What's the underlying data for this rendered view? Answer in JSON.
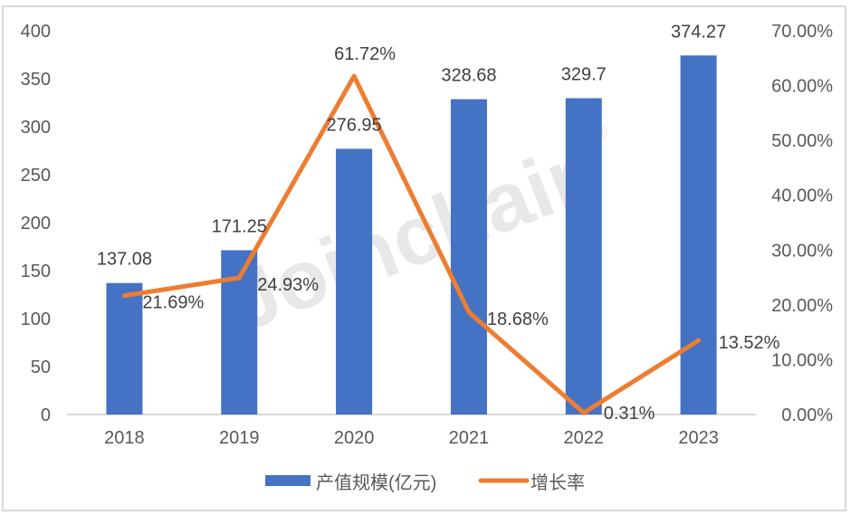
{
  "chart_data": {
    "type": "bar+line",
    "title": "",
    "categories": [
      "2018",
      "2019",
      "2020",
      "2021",
      "2022",
      "2023"
    ],
    "series": [
      {
        "name": "产值规模(亿元)",
        "type": "bar",
        "axis": "left",
        "color": "#4472C4",
        "values": [
          137.08,
          171.25,
          276.95,
          328.68,
          329.7,
          374.27
        ],
        "labels": [
          "137.08",
          "171.25",
          "276.95",
          "328.68",
          "329.7",
          "374.27"
        ]
      },
      {
        "name": "增长率",
        "type": "line",
        "axis": "right",
        "color": "#ED7D31",
        "values": [
          21.69,
          24.93,
          61.72,
          18.68,
          0.31,
          13.52
        ],
        "labels": [
          "21.69%",
          "24.93%",
          "61.72%",
          "18.68%",
          "0.31%",
          "13.52%"
        ]
      }
    ],
    "left_axis": {
      "label": "",
      "ylim": [
        0,
        400
      ],
      "ticks": [
        "0",
        "50",
        "100",
        "150",
        "200",
        "250",
        "300",
        "350",
        "400"
      ]
    },
    "right_axis": {
      "label": "",
      "ylim": [
        0,
        70
      ],
      "ticks": [
        "0.00%",
        "10.00%",
        "20.00%",
        "30.00%",
        "40.00%",
        "50.00%",
        "60.00%",
        "70.00%"
      ]
    },
    "grid": false,
    "legend_position": "bottom",
    "watermark": "Joinchain®"
  },
  "legend": {
    "bar_label": "产值规模(亿元)",
    "line_label": "增长率"
  },
  "watermark": {
    "text": "Joinchain",
    "mark": "®"
  },
  "colors": {
    "bar": "#4472C4",
    "line": "#ED7D31",
    "axis": "#D9D9D9",
    "tick_text": "#595959",
    "label_text": "#404040"
  }
}
